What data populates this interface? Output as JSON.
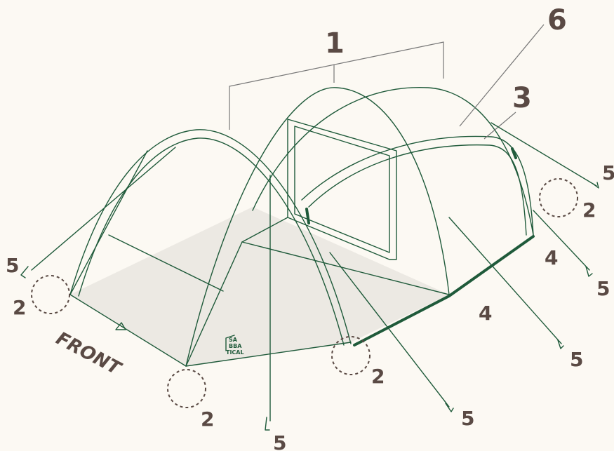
{
  "labels": {
    "one": "1",
    "six": "6",
    "three": "3",
    "five": [
      "5",
      "5",
      "5",
      "5",
      "5",
      "5"
    ],
    "two": [
      "2",
      "2",
      "2",
      "2"
    ],
    "four": [
      "4",
      "4"
    ],
    "front": "FRONT",
    "logo": [
      "SA",
      "BBA",
      "TICAL"
    ]
  }
}
